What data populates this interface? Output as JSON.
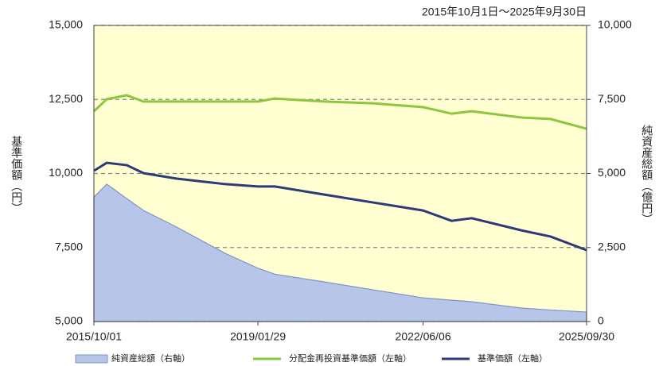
{
  "chart_data": {
    "type": "line",
    "subtitle": "2015年10月1日～2025年9月30日",
    "ylabel": "基準価額（円）",
    "y2label": "純資産総額（億円）",
    "x": [
      "2015/10/01",
      "2016/01/04",
      "2016/06/01",
      "2016/10/03",
      "2017/06/01",
      "2018/06/01",
      "2019/01/29",
      "2019/06/03",
      "2020/06/01",
      "2021/06/01",
      "2022/06/06",
      "2023/01/04",
      "2023/06/01",
      "2024/06/03",
      "2025/01/06",
      "2025/09/30"
    ],
    "xlim": [
      "2015/10/01",
      "2025/09/30"
    ],
    "xticks": [
      "2015/10/01",
      "2019/01/29",
      "2022/06/06",
      "2025/09/30"
    ],
    "ylim": [
      5000,
      15000
    ],
    "yticks": [
      {
        "value": 5000,
        "label": "5,000"
      },
      {
        "value": 7500,
        "label": "7,500"
      },
      {
        "value": 10000,
        "label": "10,000"
      },
      {
        "value": 12500,
        "label": "12,500"
      },
      {
        "value": 15000,
        "label": "15,000"
      }
    ],
    "y2lim": [
      0,
      10000
    ],
    "y2ticks": [
      0,
      {
        "value": 2500,
        "label": "2,500"
      },
      {
        "value": 5000,
        "label": "5,000"
      },
      {
        "value": 7500,
        "label": "7,500"
      },
      {
        "value": 10000,
        "label": "10,000"
      }
    ],
    "grid": true,
    "series": [
      {
        "name": "純資産総額（右軸）",
        "type": "area",
        "axis": "y2",
        "color": "#b7c5e8",
        "values": [
          4200,
          4640,
          4150,
          3750,
          3200,
          2300,
          1800,
          1600,
          1340,
          1070,
          800,
          720,
          670,
          455,
          390,
          320
        ]
      },
      {
        "name": "分配金再投資基準価額（左軸）",
        "type": "line",
        "axis": "y",
        "color": "#8dc63f",
        "values": [
          12100,
          12510,
          12640,
          12430,
          12430,
          12430,
          12430,
          12530,
          12430,
          12370,
          12240,
          12020,
          12100,
          11890,
          11840,
          11510
        ]
      },
      {
        "name": "基準価額（左軸）",
        "type": "line",
        "axis": "y",
        "color": "#2e3a78",
        "values": [
          10090,
          10360,
          10280,
          10010,
          9830,
          9640,
          9560,
          9560,
          9290,
          9020,
          8750,
          8400,
          8490,
          8080,
          7870,
          7410
        ]
      }
    ]
  }
}
